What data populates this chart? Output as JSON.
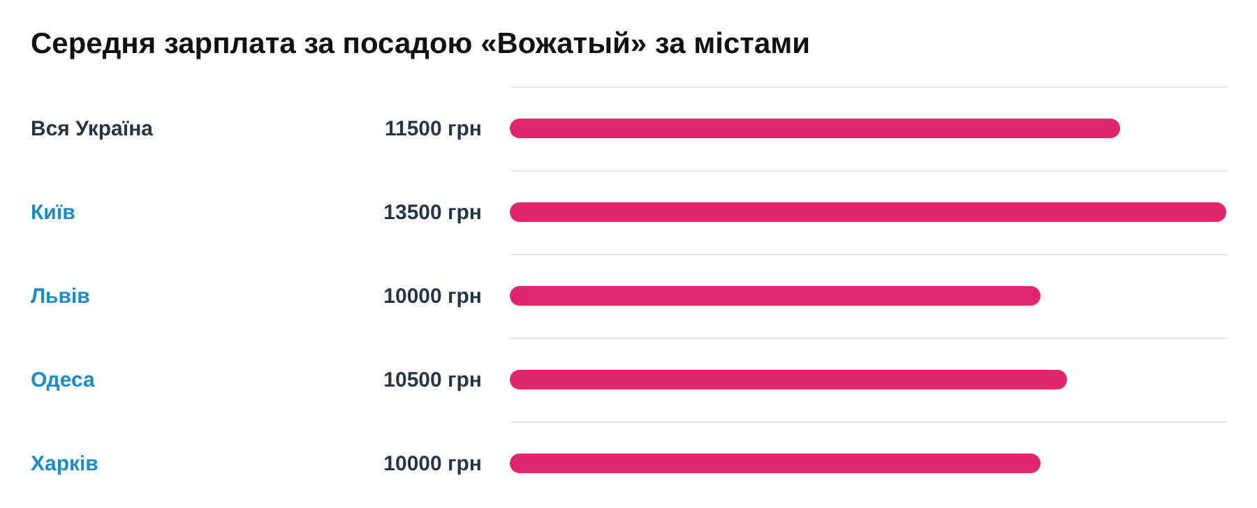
{
  "chart_data": {
    "type": "bar",
    "orientation": "horizontal",
    "title": "Середня зарплата за посадою «Вожатый» за містами",
    "categories": [
      "Вся Україна",
      "Київ",
      "Львів",
      "Одеса",
      "Харків"
    ],
    "series": [
      {
        "color": "#e0266a",
        "values": [
          11500,
          13500,
          10000,
          10500,
          10000
        ],
        "value_labels": [
          "11500 грн",
          "13500 грн",
          "10000 грн",
          "10500 грн",
          "10000 грн"
        ]
      }
    ],
    "grid": "y",
    "legend": false
  }
}
